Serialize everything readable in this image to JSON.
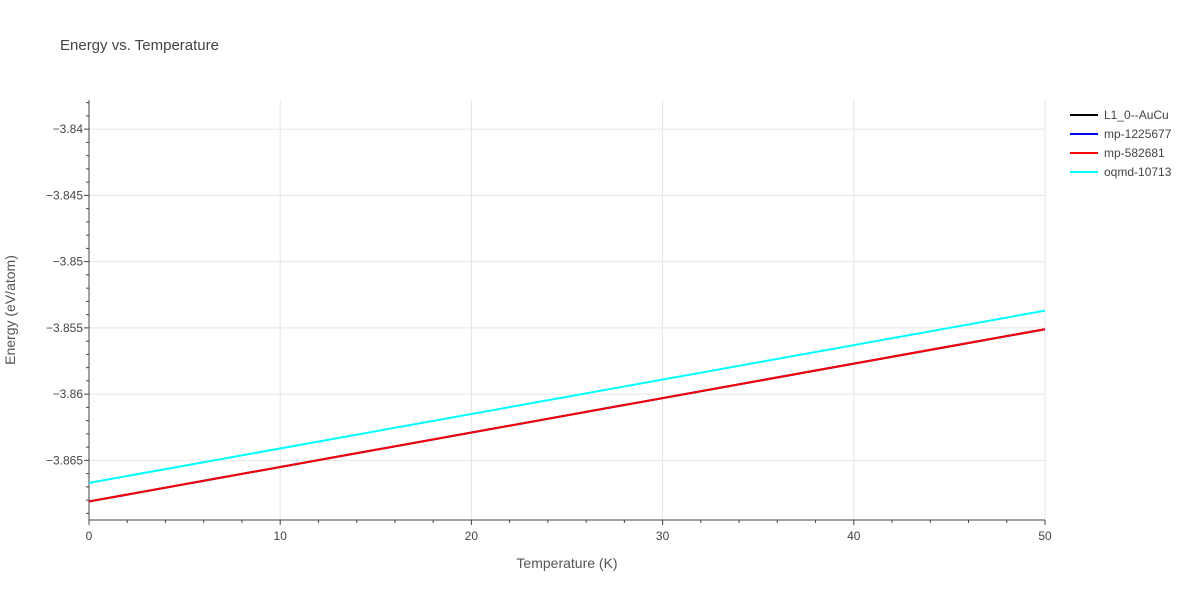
{
  "chart_data": {
    "type": "line",
    "title": "Energy vs. Temperature",
    "xlabel": "Temperature (K)",
    "ylabel": "Energy (eV/atom)",
    "xlim": [
      0,
      50
    ],
    "ylim": [
      -3.8695,
      -3.8378
    ],
    "x_ticks": [
      0,
      10,
      20,
      30,
      40,
      50
    ],
    "y_ticks": [
      -3.84,
      -3.845,
      -3.85,
      -3.855,
      -3.86,
      -3.865
    ],
    "y_tick_labels": [
      "−3.84",
      "−3.845",
      "−3.85",
      "−3.855",
      "−3.86",
      "−3.865"
    ],
    "grid": true,
    "legend_position": "top-right",
    "series": [
      {
        "name": "L1_0--AuCu",
        "color": "#000000",
        "x": [
          0,
          50
        ],
        "y": [
          -3.8681,
          -3.8551
        ]
      },
      {
        "name": "mp-1225677",
        "color": "#0000ff",
        "x": [
          0,
          50
        ],
        "y": [
          -3.8681,
          -3.8551
        ]
      },
      {
        "name": "mp-582681",
        "color": "#ff0000",
        "x": [
          0,
          50
        ],
        "y": [
          -3.8681,
          -3.8551
        ]
      },
      {
        "name": "oqmd-10713",
        "color": "#00ffff",
        "x": [
          0,
          50
        ],
        "y": [
          -3.8667,
          -3.8537
        ]
      }
    ]
  }
}
